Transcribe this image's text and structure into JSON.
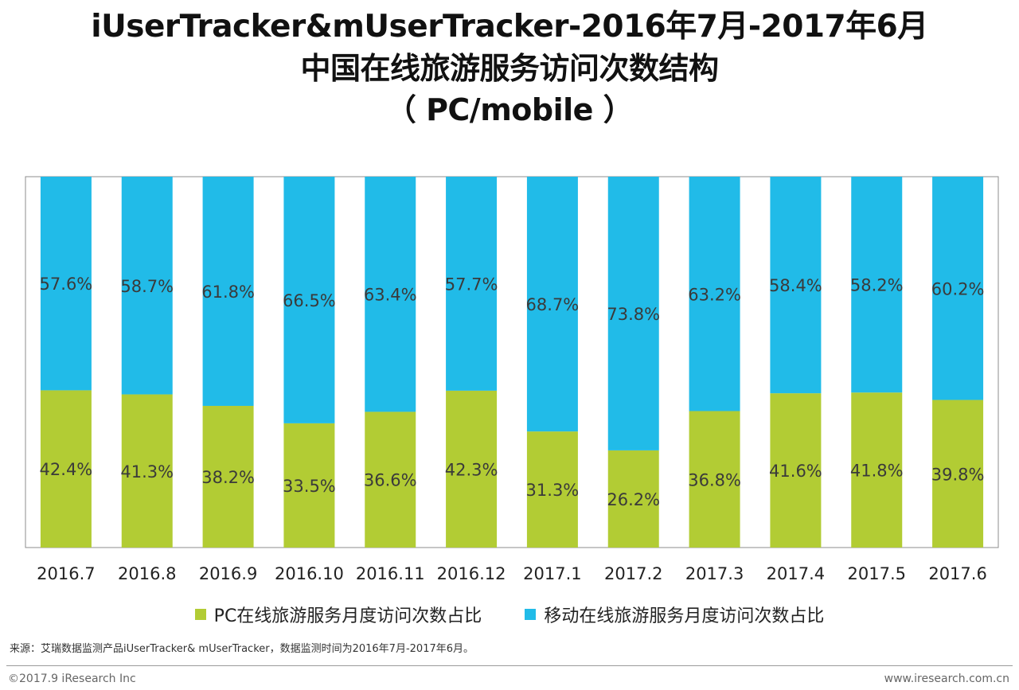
{
  "title": {
    "line1": "iUserTracker&mUserTracker-2016年7月-2017年6月",
    "line2": "中国在线旅游服务访问次数结构",
    "line3": "（ PC/mobile ）"
  },
  "chart_data": {
    "type": "bar",
    "stacked": true,
    "title": "iUserTracker&mUserTracker-2016年7月-2017年6月 中国在线旅游服务访问次数结构 （ PC/mobile ）",
    "categories": [
      "2016.7",
      "2016.8",
      "2016.9",
      "2016.10",
      "2016.11",
      "2016.12",
      "2017.1",
      "2017.2",
      "2017.3",
      "2017.4",
      "2017.5",
      "2017.6"
    ],
    "series": [
      {
        "name": "PC在线旅游服务月度访问次数占比",
        "color": "#b2cc34",
        "values": [
          42.4,
          41.3,
          38.2,
          33.5,
          36.6,
          42.3,
          31.3,
          26.2,
          36.8,
          41.6,
          41.8,
          39.8
        ],
        "labels": [
          "42.4%",
          "41.3%",
          "38.2%",
          "33.5%",
          "36.6%",
          "42.3%",
          "31.3%",
          "26.2%",
          "36.8%",
          "41.6%",
          "41.8%",
          "39.8%"
        ]
      },
      {
        "name": "移动在线旅游服务月度访问次数占比",
        "color": "#21bbe8",
        "values": [
          57.6,
          58.7,
          61.8,
          66.5,
          63.4,
          57.7,
          68.7,
          73.8,
          63.2,
          58.4,
          58.2,
          60.2
        ],
        "labels": [
          "57.6%",
          "58.7%",
          "61.8%",
          "66.5%",
          "63.4%",
          "57.7%",
          "68.7%",
          "73.8%",
          "63.2%",
          "58.4%",
          "58.2%",
          "60.2%"
        ]
      }
    ],
    "ylim": [
      0,
      100
    ],
    "xlabel": "",
    "ylabel": "",
    "grid": false,
    "legend": "bottom"
  },
  "source": "来源：艾瑞数据监测产品iUserTracker& mUserTracker，数据监测时间为2016年7月-2017年6月。",
  "footer": {
    "copyright": "©2017.9 iResearch Inc",
    "website": "www.iresearch.com.cn"
  }
}
